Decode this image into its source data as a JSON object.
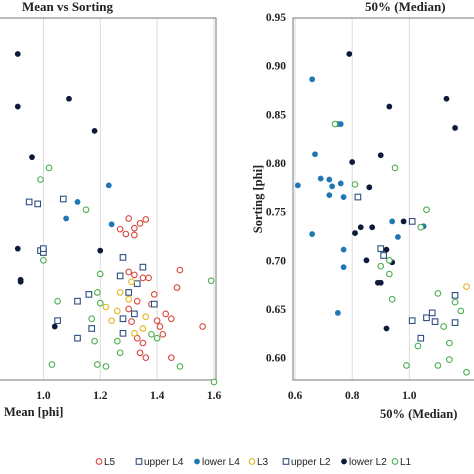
{
  "chart_data": [
    {
      "type": "scatter",
      "title": "Mean vs Sorting",
      "xlabel": "Mean [phi]",
      "ylabel": "",
      "xlim": [
        0.8,
        1.6
      ],
      "ylim": [
        0.575,
        0.95
      ],
      "xticks": [
        "1.0",
        "1.2",
        "1.4",
        "1.6"
      ],
      "yticks": [],
      "grid": "vertical",
      "series": [
        {
          "name": "L5",
          "marker": "circle-open",
          "color": "#d9473d",
          "points": [
            [
              1.27,
              0.732
            ],
            [
              1.3,
              0.743
            ],
            [
              1.32,
              0.733
            ],
            [
              1.34,
              0.738
            ],
            [
              1.36,
              0.742
            ],
            [
              1.32,
              0.726
            ],
            [
              1.29,
              0.727
            ],
            [
              1.3,
              0.688
            ],
            [
              1.32,
              0.685
            ],
            [
              1.35,
              0.682
            ],
            [
              1.37,
              0.682
            ],
            [
              1.39,
              0.665
            ],
            [
              1.38,
              0.655
            ],
            [
              1.48,
              0.69
            ],
            [
              1.47,
              0.672
            ],
            [
              1.43,
              0.645
            ],
            [
              1.45,
              0.64
            ],
            [
              1.3,
              0.65
            ],
            [
              1.31,
              0.637
            ],
            [
              1.33,
              0.62
            ],
            [
              1.35,
              0.615
            ],
            [
              1.34,
              0.605
            ],
            [
              1.36,
              0.6
            ],
            [
              1.45,
              0.6
            ],
            [
              1.56,
              0.632
            ],
            [
              1.4,
              0.638
            ],
            [
              1.41,
              0.632
            ],
            [
              1.42,
              0.624
            ],
            [
              1.33,
              0.658
            ]
          ]
        },
        {
          "name": "upper L4",
          "marker": "square-open",
          "color": "#2f4f80",
          "points": [
            [
              0.95,
              0.76
            ],
            [
              1.07,
              0.763
            ],
            [
              1.28,
              0.703
            ],
            [
              1.35,
              0.693
            ],
            [
              1.27,
              0.684
            ],
            [
              1.33,
              0.676
            ],
            [
              1.3,
              0.667
            ],
            [
              1.39,
              0.655
            ],
            [
              1.32,
              0.645
            ],
            [
              1.28,
              0.64
            ],
            [
              0.99,
              0.71
            ],
            [
              1.0,
              0.708
            ],
            [
              0.98,
              0.758
            ],
            [
              1.16,
              0.665
            ],
            [
              1.12,
              0.658
            ],
            [
              1.12,
              0.62
            ],
            [
              1.17,
              0.63
            ],
            [
              1.05,
              0.638
            ],
            [
              1.28,
              0.625
            ]
          ]
        },
        {
          "name": "lower L4",
          "marker": "circle-filled",
          "color": "#1f77b4",
          "points": [
            [
              1.23,
              0.777
            ],
            [
              1.24,
              0.737
            ],
            [
              1.12,
              0.76
            ],
            [
              1.08,
              0.743
            ]
          ]
        },
        {
          "name": "L3",
          "marker": "circle-open",
          "color": "#e6b422",
          "points": [
            [
              1.31,
              0.678
            ],
            [
              1.27,
              0.667
            ],
            [
              1.26,
              0.648
            ],
            [
              1.24,
              0.638
            ],
            [
              1.36,
              0.642
            ],
            [
              1.35,
              0.63
            ],
            [
              1.32,
              0.625
            ],
            [
              1.22,
              0.652
            ],
            [
              1.3,
              0.66
            ]
          ]
        },
        {
          "name": "upper L2",
          "marker": "square-open",
          "color": "#2f4f80",
          "points": [
            [
              1.0,
              0.712
            ]
          ]
        },
        {
          "name": "lower L2",
          "marker": "circle-filled",
          "color": "#0e1a3a",
          "points": [
            [
              0.91,
              0.912
            ],
            [
              0.91,
              0.858
            ],
            [
              0.96,
              0.806
            ],
            [
              1.09,
              0.866
            ],
            [
              1.18,
              0.833
            ],
            [
              0.91,
              0.712
            ],
            [
              0.92,
              0.68
            ],
            [
              0.92,
              0.678
            ],
            [
              1.04,
              0.632
            ],
            [
              1.2,
              0.71
            ]
          ]
        },
        {
          "name": "L1",
          "marker": "circle-open",
          "color": "#4caf50",
          "points": [
            [
              1.02,
              0.795
            ],
            [
              0.99,
              0.783
            ],
            [
              1.15,
              0.752
            ],
            [
              1.05,
              0.658
            ],
            [
              1.19,
              0.667
            ],
            [
              1.2,
              0.686
            ],
            [
              1.2,
              0.656
            ],
            [
              1.17,
              0.64
            ],
            [
              1.27,
              0.605
            ],
            [
              1.22,
              0.591
            ],
            [
              1.19,
              0.593
            ],
            [
              1.03,
              0.593
            ],
            [
              1.38,
              0.624
            ],
            [
              1.4,
              0.62
            ],
            [
              1.48,
              0.591
            ],
            [
              1.59,
              0.679
            ],
            [
              1.6,
              0.575
            ],
            [
              1.26,
              0.617
            ],
            [
              1.0,
              0.7
            ],
            [
              1.18,
              0.617
            ]
          ]
        }
      ]
    },
    {
      "type": "scatter",
      "title": "50% (Median)",
      "xlabel": "50% (Median)",
      "ylabel": "Sorting [phi]",
      "xlim": [
        0.6,
        1.2
      ],
      "ylim": [
        0.575,
        0.95
      ],
      "xticks": [
        "0.6",
        "0.8",
        "1.0"
      ],
      "yticks": [
        "0.60",
        "0.65",
        "0.70",
        "0.75",
        "0.80",
        "0.85",
        "0.90",
        "0.95"
      ],
      "grid": "vertical",
      "series": [
        {
          "name": "L5",
          "marker": "circle-open",
          "color": "#d9473d",
          "points": []
        },
        {
          "name": "upper L4",
          "marker": "square-open",
          "color": "#2f4f80",
          "points": [
            [
              0.82,
              0.765
            ],
            [
              1.01,
              0.74
            ],
            [
              1.09,
              0.637
            ],
            [
              1.16,
              0.664
            ],
            [
              1.16,
              0.636
            ],
            [
              1.08,
              0.646
            ],
            [
              1.06,
              0.641
            ],
            [
              1.01,
              0.638
            ],
            [
              1.04,
              0.62
            ],
            [
              0.9,
              0.712
            ],
            [
              0.91,
              0.705
            ]
          ]
        },
        {
          "name": "lower L4",
          "marker": "circle-filled",
          "color": "#1f77b4",
          "points": [
            [
              0.66,
              0.886
            ],
            [
              0.67,
              0.809
            ],
            [
              0.69,
              0.784
            ],
            [
              0.72,
              0.783
            ],
            [
              0.73,
              0.776
            ],
            [
              0.76,
              0.779
            ],
            [
              0.61,
              0.777
            ],
            [
              0.75,
              0.84
            ],
            [
              0.76,
              0.84
            ],
            [
              0.72,
              0.767
            ],
            [
              0.77,
              0.765
            ],
            [
              0.66,
              0.727
            ],
            [
              0.77,
              0.711
            ],
            [
              0.75,
              0.646
            ],
            [
              0.77,
              0.693
            ],
            [
              0.94,
              0.74
            ],
            [
              0.96,
              0.724
            ],
            [
              1.05,
              0.735
            ]
          ]
        },
        {
          "name": "L3",
          "marker": "circle-open",
          "color": "#e6b422",
          "points": [
            [
              1.2,
              0.673
            ]
          ]
        },
        {
          "name": "upper L2",
          "marker": "square-open",
          "color": "#2f4f80",
          "points": []
        },
        {
          "name": "lower L2",
          "marker": "circle-filled",
          "color": "#0e1a3a",
          "points": [
            [
              0.79,
              0.912
            ],
            [
              0.93,
              0.858
            ],
            [
              1.13,
              0.866
            ],
            [
              1.16,
              0.836
            ],
            [
              0.8,
              0.801
            ],
            [
              0.9,
              0.808
            ],
            [
              0.86,
              0.775
            ],
            [
              0.83,
              0.734
            ],
            [
              0.87,
              0.734
            ],
            [
              0.85,
              0.7
            ],
            [
              0.89,
              0.677
            ],
            [
              0.9,
              0.677
            ],
            [
              0.92,
              0.63
            ],
            [
              0.98,
              0.74
            ],
            [
              0.81,
              0.728
            ],
            [
              0.92,
              0.711
            ],
            [
              0.94,
              0.698
            ]
          ]
        },
        {
          "name": "L1",
          "marker": "circle-open",
          "color": "#4caf50",
          "points": [
            [
              0.74,
              0.84
            ],
            [
              0.81,
              0.778
            ],
            [
              0.95,
              0.795
            ],
            [
              1.06,
              0.752
            ],
            [
              1.04,
              0.734
            ],
            [
              0.93,
              0.7
            ],
            [
              0.9,
              0.694
            ],
            [
              0.93,
              0.686
            ],
            [
              0.94,
              0.66
            ],
            [
              1.1,
              0.666
            ],
            [
              1.16,
              0.657
            ],
            [
              1.12,
              0.632
            ],
            [
              1.14,
              0.615
            ],
            [
              0.99,
              0.592
            ],
            [
              1.1,
              0.592
            ],
            [
              1.14,
              0.598
            ],
            [
              1.2,
              0.585
            ],
            [
              1.03,
              0.612
            ],
            [
              1.18,
              0.648
            ]
          ]
        }
      ]
    }
  ],
  "legend": {
    "placement": "bottom",
    "items": [
      {
        "label": "L5",
        "marker": "circle-open",
        "color": "#d9473d"
      },
      {
        "label": "upper L4",
        "marker": "square-open",
        "color": "#2f4f80"
      },
      {
        "label": "lower L4",
        "marker": "circle-filled",
        "color": "#1f77b4"
      },
      {
        "label": "L3",
        "marker": "circle-open",
        "color": "#e6b422"
      },
      {
        "label": "upper L2",
        "marker": "square-open",
        "color": "#2f4f80"
      },
      {
        "label": "lower L2",
        "marker": "circle-filled",
        "color": "#0e1a3a"
      },
      {
        "label": "L1",
        "marker": "circle-open",
        "color": "#4caf50"
      }
    ]
  }
}
